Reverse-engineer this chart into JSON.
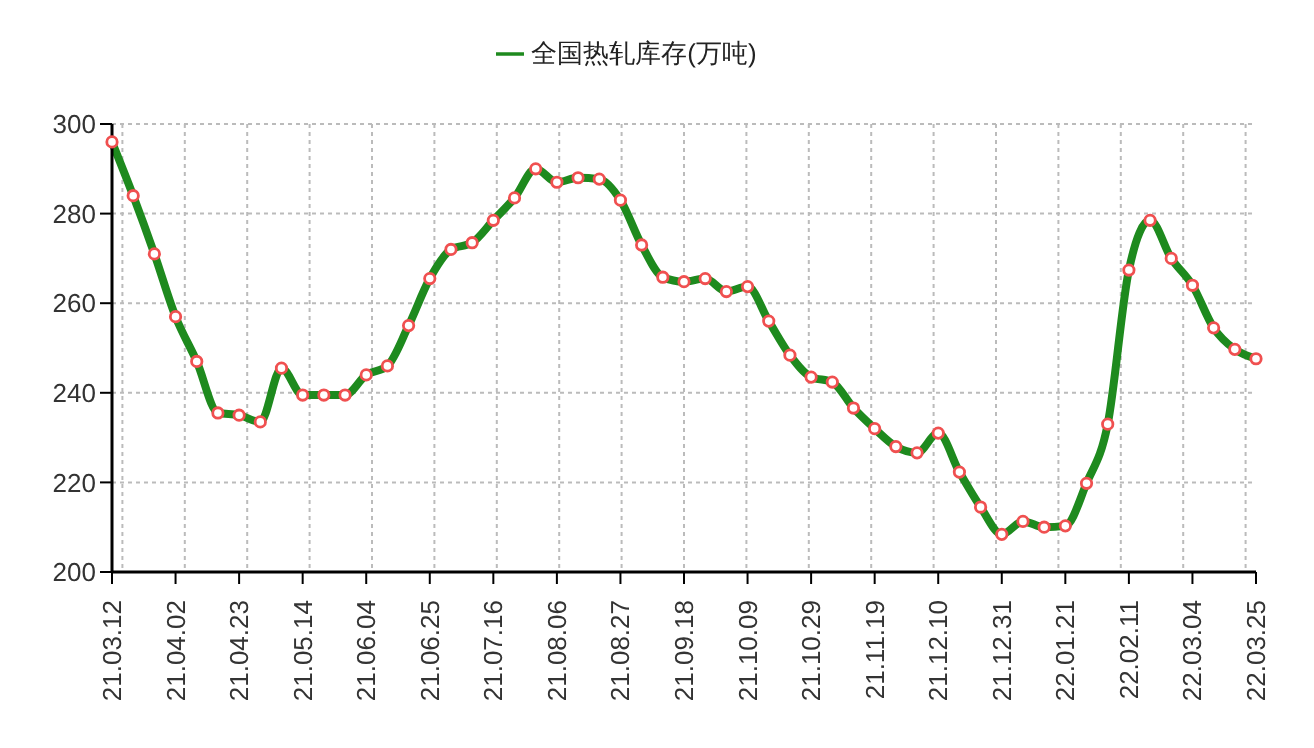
{
  "chart_data": {
    "type": "line",
    "legend": "top",
    "grid": true,
    "marker": "circle",
    "line_style": "solid",
    "categories": [
      "21.03.12",
      null,
      null,
      "21.04.02",
      null,
      null,
      "21.04.23",
      null,
      null,
      "21.05.14",
      null,
      null,
      "21.06.04",
      null,
      null,
      "21.06.25",
      null,
      null,
      "21.07.16",
      null,
      null,
      "21.08.06",
      null,
      null,
      "21.08.27",
      null,
      null,
      "21.09.18",
      null,
      null,
      "21.10.09",
      null,
      null,
      "21.10.29",
      null,
      null,
      "21.11.19",
      null,
      null,
      "21.12.10",
      null,
      null,
      "21.12.31",
      null,
      null,
      "22.01.21",
      null,
      null,
      "22.02.11",
      null,
      null,
      "22.03.04",
      null,
      null,
      "22.03.25"
    ],
    "ylim": [
      200,
      300
    ],
    "yticks": [
      200,
      220,
      240,
      260,
      280,
      300
    ],
    "series": [
      {
        "name": "全国热轧库存(万吨)",
        "color": "#1e8a1e",
        "values": [
          296,
          284,
          271,
          257,
          247,
          235.5,
          235,
          233.5,
          245.5,
          239.5,
          239.5,
          239.5,
          244,
          246,
          255,
          265.5,
          272,
          273.5,
          278.5,
          283.5,
          290,
          287,
          288,
          287.7,
          283,
          273,
          265.8,
          264.8,
          265.5,
          262.6,
          263.7,
          256,
          248.4,
          243.5,
          242.4,
          236.6,
          232,
          228,
          226.6,
          231,
          222.3,
          214.5,
          208.4,
          211.3,
          210,
          210.3,
          219.8,
          233,
          267.4,
          278.5,
          270,
          264,
          254.5,
          249.7,
          247.6
        ]
      }
    ]
  }
}
